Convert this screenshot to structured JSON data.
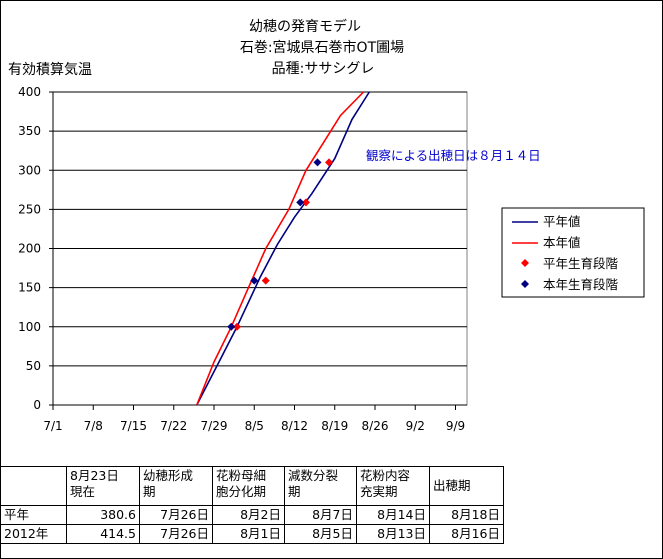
{
  "chart_data": {
    "type": "line",
    "title": [
      "幼穂の発育モデル",
      "石巻:宮城県石巻市OT圃場",
      "品種:ササシグレ"
    ],
    "ylabel": "有効積算気温",
    "xlabel": "",
    "ylim": [
      0,
      400
    ],
    "yticks": [
      0,
      50,
      100,
      150,
      200,
      250,
      300,
      350,
      400
    ],
    "xticks": [
      "7/1",
      "7/8",
      "7/15",
      "7/22",
      "7/29",
      "8/5",
      "8/12",
      "8/19",
      "8/26",
      "9/2",
      "9/9"
    ],
    "grid": "horizontal",
    "legend_position": "right",
    "annotation": "観察による出穂日は８月１４日",
    "series": [
      {
        "name": "平年値",
        "kind": "line",
        "color": "#000080",
        "x": [
          "7/26",
          "7/30",
          "8/2",
          "8/6",
          "8/9",
          "8/12",
          "8/15",
          "8/19",
          "8/22",
          "8/25"
        ],
        "y": [
          0,
          57,
          100,
          163,
          205,
          240,
          270,
          315,
          365,
          400
        ]
      },
      {
        "name": "本年値",
        "kind": "line",
        "color": "#ff0000",
        "x": [
          "7/26",
          "7/29",
          "8/1",
          "8/4",
          "8/7",
          "8/11",
          "8/14",
          "8/17",
          "8/20",
          "8/24"
        ],
        "y": [
          0,
          55,
          100,
          150,
          200,
          250,
          300,
          335,
          370,
          400
        ]
      },
      {
        "name": "平年生育段階",
        "kind": "marker",
        "color": "#ff0000",
        "x": [
          "8/2",
          "8/7",
          "8/14",
          "8/18"
        ],
        "y": [
          100,
          159,
          259,
          310
        ]
      },
      {
        "name": "本年生育段階",
        "kind": "marker",
        "color": "#000080",
        "x": [
          "8/1",
          "8/5",
          "8/13",
          "8/16"
        ],
        "y": [
          100,
          159,
          259,
          310
        ]
      }
    ]
  },
  "table": {
    "headers": [
      [
        "",
        ""
      ],
      [
        "8月23日",
        "現在"
      ],
      [
        "幼穂形成",
        "期"
      ],
      [
        "花粉母細",
        "胞分化期"
      ],
      [
        "減数分裂",
        "期"
      ],
      [
        "花粉内容",
        "充実期"
      ],
      [
        "出穂期",
        ""
      ]
    ],
    "rows": [
      [
        "平年",
        "380.6",
        "7月26日",
        "8月2日",
        "8月7日",
        "8月14日",
        "8月18日"
      ],
      [
        "2012年",
        "414.5",
        "7月26日",
        "8月1日",
        "8月5日",
        "8月13日",
        "8月16日"
      ]
    ]
  }
}
